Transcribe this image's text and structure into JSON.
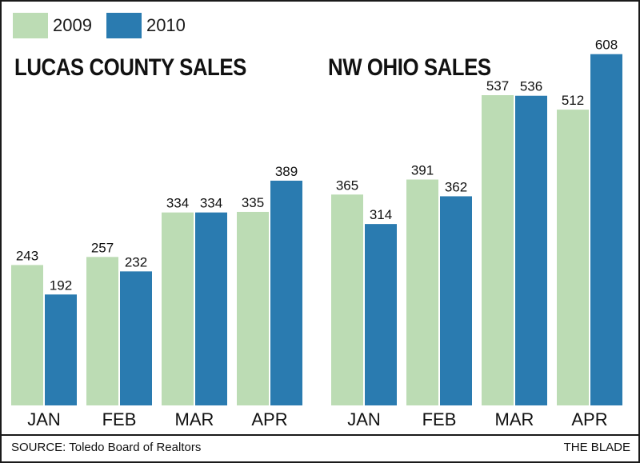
{
  "legend": [
    {
      "label": "2009",
      "color": "#bcdcb4"
    },
    {
      "label": "2010",
      "color": "#2a7bb0"
    }
  ],
  "chart_data": [
    {
      "type": "bar",
      "title": "LUCAS COUNTY SALES",
      "categories": [
        "JAN",
        "FEB",
        "MAR",
        "APR"
      ],
      "series": [
        {
          "name": "2009",
          "values": [
            243,
            257,
            334,
            335
          ]
        },
        {
          "name": "2010",
          "values": [
            192,
            232,
            334,
            389
          ]
        }
      ]
    },
    {
      "type": "bar",
      "title": "NW OHIO SALES",
      "categories": [
        "JAN",
        "FEB",
        "MAR",
        "APR"
      ],
      "series": [
        {
          "name": "2009",
          "values": [
            365,
            391,
            537,
            512
          ]
        },
        {
          "name": "2010",
          "values": [
            314,
            362,
            536,
            608
          ]
        }
      ]
    }
  ],
  "footer": {
    "source": "SOURCE: Toledo Board of Realtors",
    "credit": "THE BLADE"
  }
}
